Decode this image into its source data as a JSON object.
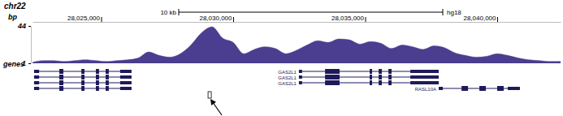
{
  "chart_data": {
    "type": "area",
    "title": "chr22",
    "assembly": "hg18",
    "y_label": "bp",
    "track_label": "genes",
    "color": "#4b3d8f",
    "x": [
      28022400,
      28022800,
      28023200,
      28023600,
      28024000,
      28024400,
      28024800,
      28025200,
      28025600,
      28026000,
      28026400,
      28026800,
      28027200,
      28027600,
      28028000,
      28028400,
      28028800,
      28029200,
      28029600,
      28030000,
      28030400,
      28030800,
      28031200,
      28031600,
      28032000,
      28032400,
      28032800,
      28033200,
      28033600,
      28034000,
      28034400,
      28034800,
      28035200,
      28035600,
      28036000,
      28036400,
      28036800,
      28037200,
      28037600,
      28038000,
      28038400,
      28038800,
      28039200,
      28039600,
      28040000,
      28040400,
      28040800,
      28041200,
      28041600,
      28042000,
      28042400
    ],
    "values": [
      2,
      4,
      4,
      3,
      4,
      5,
      4,
      3,
      4,
      5,
      7,
      14,
      10,
      8,
      12,
      22,
      36,
      43,
      30,
      25,
      12,
      17,
      20,
      18,
      12,
      16,
      22,
      27,
      25,
      29,
      28,
      23,
      26,
      24,
      18,
      22,
      20,
      17,
      21,
      19,
      13,
      10,
      8,
      9,
      12,
      10,
      7,
      5,
      4,
      3,
      3
    ],
    "xlim": [
      28022400,
      28042400
    ],
    "xticks": [
      {
        "value": 28025000,
        "label": "28,025,000"
      },
      {
        "value": 28030000,
        "label": "28,030,000"
      },
      {
        "value": 28035000,
        "label": "28,035,000"
      },
      {
        "value": 28040000,
        "label": "28,040,000"
      }
    ],
    "ylim": [
      1,
      44
    ],
    "yticks": [
      44,
      1
    ],
    "scale_bar": {
      "label": "10 kb",
      "length": 10000
    },
    "highlight": 28029110,
    "genes": [
      {
        "isoforms": [
          {
            "start": 28022460,
            "end": 28026150,
            "exons": [
              [
                28022460,
                28022650
              ],
              [
                28023415,
                28023570
              ],
              [
                28024250,
                28024370
              ],
              [
                28024800,
                28024920
              ],
              [
                28025170,
                28025290
              ],
              [
                28025720,
                28026150
              ]
            ]
          },
          {
            "start": 28022460,
            "end": 28026150,
            "exons": [
              [
                28022460,
                28022650
              ],
              [
                28023415,
                28023570
              ],
              [
                28024250,
                28024370
              ],
              [
                28024800,
                28024920
              ],
              [
                28025170,
                28025290
              ],
              [
                28025720,
                28026150
              ]
            ]
          },
          {
            "start": 28022460,
            "end": 28026150,
            "exons": [
              [
                28022460,
                28022650
              ],
              [
                28023415,
                28023570
              ],
              [
                28024250,
                28024370
              ],
              [
                28024800,
                28024920
              ],
              [
                28025170,
                28025290
              ],
              [
                28025720,
                28026150
              ]
            ]
          },
          {
            "start": 28022460,
            "end": 28026150,
            "exons": [
              [
                28022460,
                28022650
              ],
              [
                28023415,
                28023570
              ],
              [
                28024250,
                28024370
              ],
              [
                28024800,
                28024920
              ],
              [
                28025170,
                28025290
              ],
              [
                28025720,
                28026150
              ]
            ]
          }
        ]
      },
      {
        "isoforms": [
          {
            "label": "GAS2L1",
            "start": 28032490,
            "end": 28037785,
            "exons": [
              [
                28032490,
                28032610
              ],
              [
                28033480,
                28034030
              ],
              [
                28035170,
                28035260
              ],
              [
                28035510,
                28035630
              ],
              [
                28035880,
                28036000
              ],
              [
                28036710,
                28037785
              ]
            ]
          },
          {
            "label": "GAS2L1",
            "start": 28032490,
            "end": 28037785,
            "exons": [
              [
                28032490,
                28032610
              ],
              [
                28033480,
                28034030
              ],
              [
                28035170,
                28035260
              ],
              [
                28035510,
                28035630
              ],
              [
                28035880,
                28036000
              ],
              [
                28036710,
                28037785
              ]
            ]
          },
          {
            "label": "GAS2L1",
            "start": 28032490,
            "end": 28037785,
            "exons": [
              [
                28032490,
                28032610
              ],
              [
                28033480,
                28034030
              ],
              [
                28035170,
                28035260
              ],
              [
                28035510,
                28035630
              ],
              [
                28035880,
                28036000
              ],
              [
                28036710,
                28037785
              ]
            ]
          }
        ]
      },
      {
        "isoforms": [
          {
            "label": "RASL10A",
            "start": 28037785,
            "end": 28040860,
            "exons": [
              [
                28037785,
                28037940
              ],
              [
                28038650,
                28038895
              ],
              [
                28039325,
                28039570
              ],
              [
                28040000,
                28040245
              ],
              [
                28040400,
                28040860
              ]
            ]
          }
        ]
      }
    ]
  }
}
